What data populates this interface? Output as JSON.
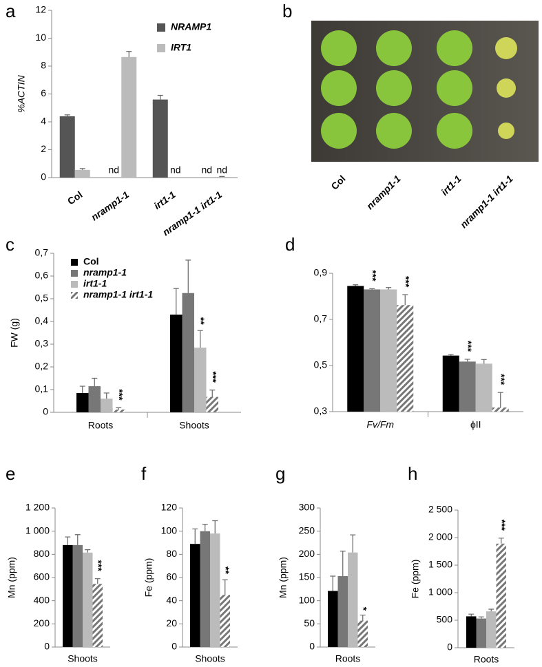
{
  "chart_data": [
    {
      "type": "bar",
      "panel": "a",
      "ylabel": "%ACTIN",
      "legend": true,
      "categories": [
        "Col",
        "nramp1-1",
        "irt1-1",
        "nramp1-1 irt1-1"
      ],
      "ylim": [
        0,
        12
      ],
      "yticks": [
        0,
        2,
        4,
        6,
        8,
        10,
        12
      ],
      "series": [
        {
          "name": "NRAMP1",
          "color": "#555555",
          "values": [
            4.4,
            null,
            5.6,
            null
          ],
          "errors": [
            0.1,
            null,
            0.3,
            null
          ],
          "value_labels": [
            null,
            "nd",
            null,
            "nd"
          ]
        },
        {
          "name": "IRT1",
          "color": "#bbbbbb",
          "values": [
            0.55,
            8.65,
            null,
            0.05
          ],
          "errors": [
            0.1,
            0.4,
            null,
            0.03
          ],
          "value_labels": [
            null,
            null,
            "nd",
            "nd"
          ]
        }
      ]
    },
    {
      "type": "image",
      "panel": "b",
      "categories": [
        "Col",
        "nramp1-1",
        "irt1-1",
        "nramp1-1 irt1-1"
      ]
    },
    {
      "type": "bar",
      "panel": "c",
      "ylabel": "FW (g)",
      "legend": true,
      "categories": [
        "Roots",
        "Shoots"
      ],
      "ylim": [
        0,
        0.7
      ],
      "yticks": [
        0,
        {
          "value": 0.1,
          "label": "0,1"
        },
        {
          "value": 0.2,
          "label": "0,2"
        },
        {
          "value": 0.3,
          "label": "0,3"
        },
        {
          "value": 0.4,
          "label": "0,4"
        },
        {
          "value": 0.5,
          "label": "0,5"
        },
        {
          "value": 0.6,
          "label": "0,6"
        },
        {
          "value": 0.7,
          "label": "0,7"
        }
      ],
      "series": [
        {
          "name": "Col",
          "color": "#000000",
          "values": [
            0.085,
            0.43
          ],
          "errors": [
            0.03,
            0.115
          ],
          "significance": [
            null,
            null
          ]
        },
        {
          "name": "nramp1-1",
          "color": "#777777",
          "values": [
            0.115,
            0.525
          ],
          "errors": [
            0.035,
            0.145
          ],
          "significance": [
            null,
            null
          ]
        },
        {
          "name": "irt1-1",
          "color": "#bbbbbb",
          "values": [
            0.06,
            0.285
          ],
          "errors": [
            0.025,
            0.075
          ],
          "significance": [
            null,
            "**"
          ]
        },
        {
          "name": "nramp1-1 irt1-1",
          "color": "#777777",
          "hatch": true,
          "values": [
            0.012,
            0.068
          ],
          "errors": [
            0.008,
            0.03
          ],
          "significance": [
            "***",
            "***"
          ]
        }
      ]
    },
    {
      "type": "bar",
      "panel": "d",
      "categories": [
        "Fv/Fm",
        "ϕII"
      ],
      "ylim": [
        0.3,
        0.9
      ],
      "yticks": [
        {
          "value": 0.3,
          "label": "0,3"
        },
        {
          "value": 0.5,
          "label": "0,5"
        },
        {
          "value": 0.7,
          "label": "0,7"
        },
        {
          "value": 0.9,
          "label": "0,9"
        }
      ],
      "series": [
        {
          "color": "#000000",
          "values": [
            0.845,
            0.543
          ],
          "errors": [
            0.005,
            0.005
          ],
          "significance": [
            null,
            null
          ]
        },
        {
          "color": "#777777",
          "values": [
            0.83,
            0.517
          ],
          "errors": [
            0.003,
            0.01
          ],
          "significance": [
            "***",
            "***"
          ]
        },
        {
          "color": "#bbbbbb",
          "values": [
            0.83,
            0.508
          ],
          "errors": [
            0.008,
            0.018
          ],
          "significance": [
            null,
            null
          ]
        },
        {
          "color": "#777777",
          "hatch": true,
          "values": [
            0.762,
            0.318
          ],
          "errors": [
            0.045,
            0.065
          ],
          "significance": [
            "***",
            "***"
          ]
        }
      ]
    },
    {
      "type": "bar",
      "panel": "e",
      "ylabel": "Mn (ppm)",
      "categories": [
        "Shoots"
      ],
      "ylim": [
        0,
        1200
      ],
      "yticks": [
        0,
        200,
        400,
        600,
        800,
        {
          "value": 1000,
          "label": "1 000"
        },
        {
          "value": 1200,
          "label": "1 200"
        }
      ],
      "series": [
        {
          "color": "#000000",
          "values": [
            880
          ],
          "errors": [
            70
          ],
          "significance": [
            null
          ]
        },
        {
          "color": "#777777",
          "values": [
            880
          ],
          "errors": [
            90
          ],
          "significance": [
            null
          ]
        },
        {
          "color": "#bbbbbb",
          "values": [
            815
          ],
          "errors": [
            25
          ],
          "significance": [
            null
          ]
        },
        {
          "color": "#777777",
          "hatch": true,
          "values": [
            545
          ],
          "errors": [
            45
          ],
          "significance": [
            "***"
          ]
        }
      ]
    },
    {
      "type": "bar",
      "panel": "f",
      "ylabel": "Fe (ppm)",
      "categories": [
        "Shoots"
      ],
      "ylim": [
        0,
        120
      ],
      "yticks": [
        0,
        20,
        40,
        60,
        80,
        100,
        120
      ],
      "series": [
        {
          "color": "#000000",
          "values": [
            89
          ],
          "errors": [
            13
          ],
          "significance": [
            null
          ]
        },
        {
          "color": "#777777",
          "values": [
            100
          ],
          "errors": [
            6
          ],
          "significance": [
            null
          ]
        },
        {
          "color": "#bbbbbb",
          "values": [
            98
          ],
          "errors": [
            11
          ],
          "significance": [
            null
          ]
        },
        {
          "color": "#777777",
          "hatch": true,
          "values": [
            45
          ],
          "errors": [
            13
          ],
          "significance": [
            "**"
          ]
        }
      ]
    },
    {
      "type": "bar",
      "panel": "g",
      "ylabel": "Mn (ppm)",
      "categories": [
        "Roots"
      ],
      "ylim": [
        0,
        300
      ],
      "yticks": [
        0,
        50,
        100,
        150,
        200,
        250,
        300
      ],
      "series": [
        {
          "color": "#000000",
          "values": [
            121
          ],
          "errors": [
            32
          ],
          "significance": [
            null
          ]
        },
        {
          "color": "#777777",
          "values": [
            153
          ],
          "errors": [
            54
          ],
          "significance": [
            null
          ]
        },
        {
          "color": "#bbbbbb",
          "values": [
            204
          ],
          "errors": [
            38
          ],
          "significance": [
            null
          ]
        },
        {
          "color": "#777777",
          "hatch": true,
          "values": [
            57
          ],
          "errors": [
            12
          ],
          "significance": [
            "*"
          ]
        }
      ]
    },
    {
      "type": "bar",
      "panel": "h",
      "ylabel": "Fe (ppm)",
      "categories": [
        "Roots"
      ],
      "ylim": [
        0,
        2500
      ],
      "yticks": [
        0,
        500,
        {
          "value": 1000,
          "label": "1 000"
        },
        {
          "value": 1500,
          "label": "1 500"
        },
        {
          "value": 2000,
          "label": "2 000"
        },
        {
          "value": 2500,
          "label": "2 500"
        }
      ],
      "series": [
        {
          "color": "#000000",
          "values": [
            570
          ],
          "errors": [
            40
          ],
          "significance": [
            null
          ]
        },
        {
          "color": "#777777",
          "values": [
            530
          ],
          "errors": [
            30
          ],
          "significance": [
            null
          ]
        },
        {
          "color": "#bbbbbb",
          "values": [
            660
          ],
          "errors": [
            40
          ],
          "significance": [
            null
          ]
        },
        {
          "color": "#777777",
          "hatch": true,
          "values": [
            1890
          ],
          "errors": [
            100
          ],
          "significance": [
            "***"
          ]
        }
      ]
    }
  ]
}
